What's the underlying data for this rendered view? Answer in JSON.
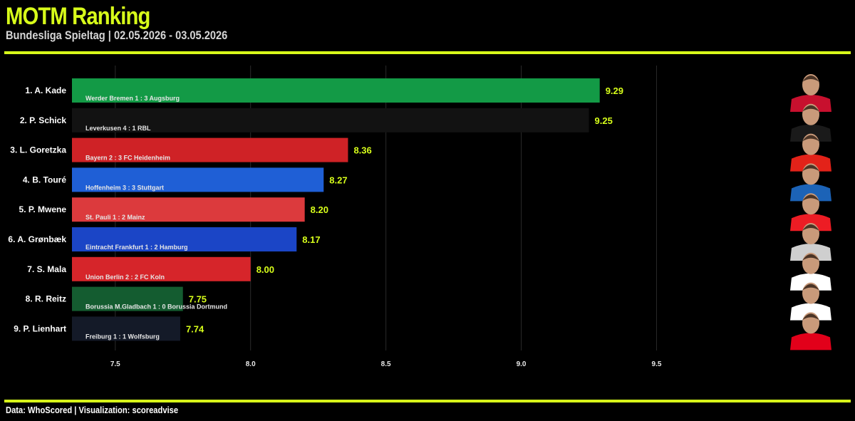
{
  "header": {
    "title": "MOTM Ranking",
    "subtitle": "Bundesliga Spieltag | 02.05.2026 - 03.05.2026"
  },
  "footer": {
    "credit": "Data: WhoScored | Visualization: scoreadvise"
  },
  "colors": {
    "accent": "#d8ff1a",
    "background": "#000000",
    "grid": "#2a2a2a"
  },
  "chart_data": {
    "type": "bar",
    "orientation": "horizontal",
    "title": "MOTM Ranking",
    "subtitle": "Bundesliga Spieltag | 02.05.2026 - 03.05.2026",
    "xlim": [
      7.34,
      9.97
    ],
    "x_ticks": [
      7.5,
      8.0,
      8.5,
      9.0,
      9.5
    ],
    "x_tick_labels": [
      "7.5",
      "8.0",
      "8.5",
      "9.0",
      "9.5"
    ],
    "grid": "vertical",
    "categories": [
      "1. A. Kade",
      "2. P. Schick",
      "3. L. Goretzka",
      "4. B. Touré",
      "5. P. Mwene",
      "6. A. Grønbæk",
      "7. S. Mala",
      "8. R. Reitz",
      "9. P. Lienhart"
    ],
    "values": [
      9.29,
      9.25,
      8.36,
      8.27,
      8.2,
      8.17,
      8.0,
      7.75,
      7.74
    ],
    "value_labels": [
      "9.29",
      "9.25",
      "8.36",
      "8.27",
      "8.20",
      "8.17",
      "8.00",
      "7.75",
      "7.74"
    ],
    "matches": [
      "Werder Bremen 1 : 3 Augsburg",
      "Leverkusen 4 : 1 RBL",
      "Bayern 2 : 3 FC Heidenheim",
      "Hoffenheim 3 : 3 Stuttgart",
      "St. Pauli 1 : 2 Mainz",
      "Eintracht Frankfurt 1 : 2 Hamburg",
      "Union Berlin 2 : 2 FC Koln",
      "Borussia M.Gladbach 1 : 0 Borussia Dortmund",
      "Freiburg 1 : 1 Wolfsburg"
    ],
    "bar_colors": [
      "#139a46",
      "#121212",
      "#cf2226",
      "#1f5fd6",
      "#dc3a3d",
      "#1b45c6",
      "#d6252a",
      "#145c30",
      "#141a28"
    ],
    "player_photo_colors": [
      "#c8102e",
      "#1a1a1a",
      "#e32219",
      "#1c63b7",
      "#ed1c24",
      "#cfcfcf",
      "#ffffff",
      "#ffffff",
      "#e2001a"
    ]
  }
}
